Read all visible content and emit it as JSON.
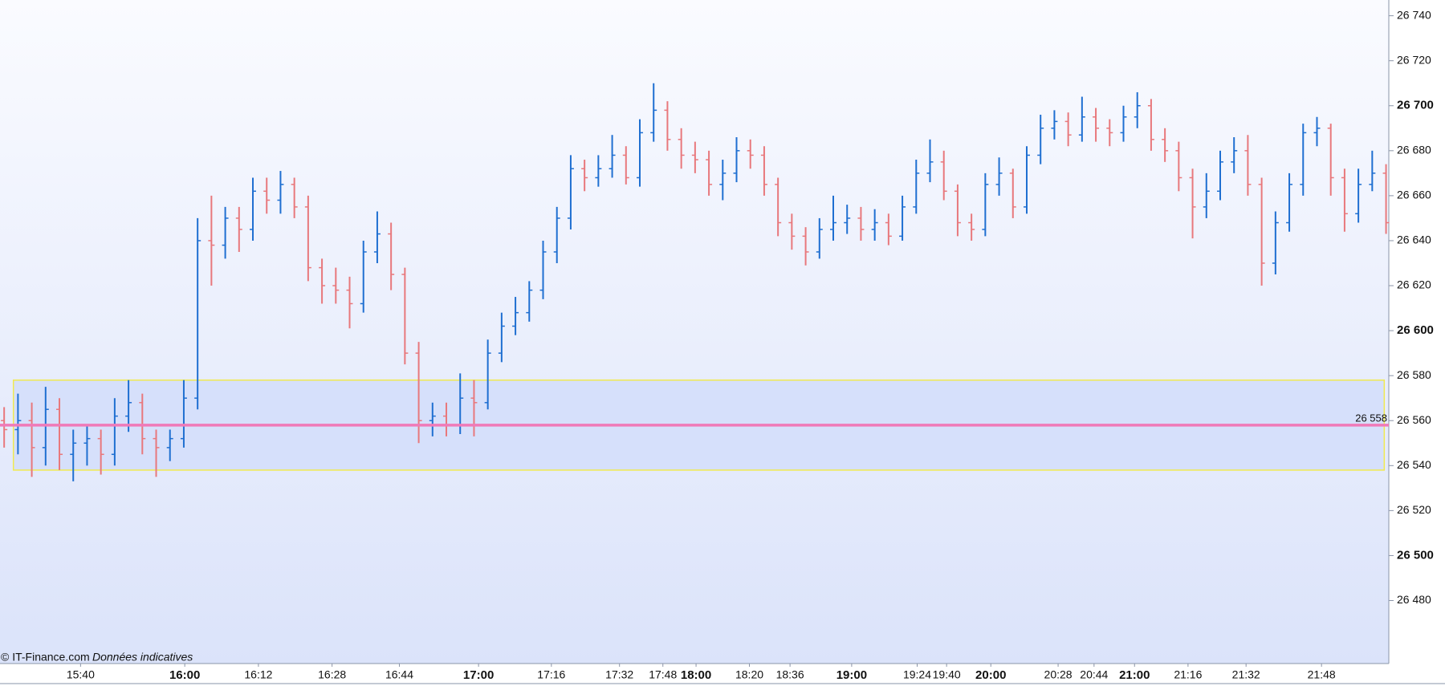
{
  "chart_data": {
    "type": "ohlc",
    "x": [
      0,
      1,
      2,
      3,
      4,
      5,
      6,
      7,
      8,
      9,
      10,
      11,
      12,
      13,
      14,
      15,
      16,
      17,
      18,
      19,
      20,
      21,
      22,
      23,
      24,
      25,
      26,
      27,
      28,
      29,
      30,
      31,
      32,
      33,
      34,
      35,
      36,
      37,
      38,
      39,
      40,
      41,
      42,
      43,
      44,
      45,
      46,
      47,
      48,
      49,
      50,
      51,
      52,
      53,
      54,
      55,
      56,
      57,
      58,
      59,
      60,
      61,
      62,
      63,
      64,
      65,
      66,
      67,
      68,
      69,
      70,
      71,
      72,
      73,
      74,
      75,
      76,
      77,
      78,
      79,
      80,
      81,
      82,
      83,
      84,
      85,
      86,
      87,
      88,
      89,
      90,
      91,
      92,
      93,
      94,
      95,
      96,
      97,
      98,
      99,
      100
    ],
    "open": [
      26560,
      26556,
      26560,
      26548,
      26565,
      26545,
      26550,
      26552,
      26545,
      26562,
      26568,
      26552,
      26548,
      26552,
      26570,
      26640,
      26638,
      26650,
      26645,
      26662,
      26658,
      26665,
      26655,
      26628,
      26620,
      26618,
      26612,
      26635,
      26643,
      26625,
      26590,
      26560,
      26562,
      26558,
      26570,
      26568,
      26590,
      26602,
      26608,
      26618,
      26635,
      26650,
      26672,
      26668,
      26672,
      26678,
      26668,
      26688,
      26698,
      26685,
      26678,
      26676,
      26665,
      26670,
      26680,
      26678,
      26665,
      26648,
      26642,
      26635,
      26645,
      26648,
      26650,
      26645,
      26648,
      26642,
      26655,
      26670,
      26675,
      26662,
      26648,
      26645,
      26665,
      26670,
      26655,
      26678,
      26690,
      26693,
      26687,
      26695,
      26690,
      26688,
      26695,
      26700,
      26685,
      26680,
      26668,
      26655,
      26662,
      26675,
      26680,
      26665,
      26630,
      26648,
      26665,
      26688,
      26690,
      26668,
      26652,
      26665,
      26670
    ],
    "high": [
      26566,
      26572,
      26568,
      26575,
      26570,
      26556,
      26558,
      26556,
      26570,
      26578,
      26572,
      26556,
      26556,
      26578,
      26650,
      26660,
      26655,
      26655,
      26668,
      26668,
      26671,
      26668,
      26660,
      26632,
      26628,
      26624,
      26640,
      26653,
      26648,
      26628,
      26595,
      26568,
      26568,
      26581,
      26578,
      26596,
      26608,
      26615,
      26622,
      26640,
      26655,
      26678,
      26676,
      26678,
      26687,
      26682,
      26694,
      26710,
      26702,
      26690,
      26684,
      26680,
      26676,
      26686,
      26685,
      26682,
      26668,
      26652,
      26646,
      26650,
      26660,
      26656,
      26655,
      26654,
      26652,
      26660,
      26676,
      26685,
      26680,
      26665,
      26652,
      26670,
      26677,
      26672,
      26682,
      26696,
      26698,
      26697,
      26704,
      26699,
      26694,
      26700,
      26706,
      26703,
      26690,
      26684,
      26672,
      26670,
      26680,
      26686,
      26687,
      26668,
      26653,
      26670,
      26692,
      26695,
      26692,
      26672,
      26672,
      26680,
      26674
    ],
    "low": [
      26548,
      26545,
      26535,
      26540,
      26538,
      26533,
      26540,
      26536,
      26540,
      26555,
      26545,
      26535,
      26542,
      26548,
      26565,
      26620,
      26632,
      26635,
      26640,
      26652,
      26652,
      26650,
      26622,
      26612,
      26612,
      26601,
      26608,
      26630,
      26618,
      26585,
      26550,
      26553,
      26553,
      26554,
      26553,
      26565,
      26586,
      26598,
      26604,
      26614,
      26630,
      26645,
      26662,
      26664,
      26668,
      26665,
      26664,
      26684,
      26680,
      26672,
      26670,
      26660,
      26658,
      26666,
      26672,
      26660,
      26642,
      26636,
      26629,
      26632,
      26640,
      26643,
      26640,
      26640,
      26638,
      26640,
      26652,
      26666,
      26658,
      26642,
      26640,
      26642,
      26660,
      26650,
      26652,
      26674,
      26685,
      26682,
      26684,
      26684,
      26682,
      26684,
      26690,
      26680,
      26675,
      26662,
      26641,
      26650,
      26658,
      26670,
      26660,
      26620,
      26625,
      26644,
      26660,
      26682,
      26660,
      26644,
      26648,
      26662,
      26643
    ],
    "close": [
      26556,
      26560,
      26548,
      26565,
      26545,
      26550,
      26552,
      26545,
      26562,
      26568,
      26552,
      26548,
      26552,
      26570,
      26640,
      26638,
      26650,
      26645,
      26662,
      26658,
      26665,
      26655,
      26628,
      26620,
      26618,
      26612,
      26635,
      26643,
      26625,
      26590,
      26560,
      26562,
      26558,
      26570,
      26568,
      26590,
      26602,
      26608,
      26618,
      26635,
      26650,
      26672,
      26668,
      26672,
      26678,
      26668,
      26688,
      26698,
      26685,
      26678,
      26676,
      26665,
      26670,
      26680,
      26678,
      26665,
      26648,
      26642,
      26635,
      26645,
      26648,
      26650,
      26645,
      26648,
      26642,
      26655,
      26670,
      26675,
      26662,
      26648,
      26645,
      26665,
      26670,
      26655,
      26678,
      26690,
      26693,
      26687,
      26695,
      26690,
      26688,
      26695,
      26700,
      26685,
      26680,
      26668,
      26655,
      26662,
      26675,
      26680,
      26665,
      26630,
      26648,
      26665,
      26688,
      26690,
      26668,
      26652,
      26665,
      26670,
      26648
    ],
    "up_color": "#1f6fd1",
    "down_color": "#e8787c",
    "xlim": [
      -0.3,
      100.2
    ],
    "ylim": [
      26452,
      26747
    ],
    "xticks": [
      {
        "value": 5.53,
        "label": "15:40"
      },
      {
        "value": 18.4,
        "label": "16:12"
      },
      {
        "value": 23.73,
        "label": "16:28"
      },
      {
        "value": 28.6,
        "label": "16:44"
      },
      {
        "value": 39.6,
        "label": "17:16"
      },
      {
        "value": 44.53,
        "label": "17:32"
      },
      {
        "value": 47.67,
        "label": "17:48"
      },
      {
        "value": 53.93,
        "label": "18:20"
      },
      {
        "value": 56.87,
        "label": "18:36"
      },
      {
        "value": 66.07,
        "label": "19:24"
      },
      {
        "value": 68.2,
        "label": "19:40"
      },
      {
        "value": 76.27,
        "label": "20:28"
      },
      {
        "value": 78.87,
        "label": "20:44"
      },
      {
        "value": 85.67,
        "label": "21:16"
      },
      {
        "value": 89.87,
        "label": "21:32"
      },
      {
        "value": 95.33,
        "label": "21:48"
      }
    ],
    "xticks_major": [
      {
        "value": 13.07,
        "label": "16:00"
      },
      {
        "value": 34.33,
        "label": "17:00"
      },
      {
        "value": 50.07,
        "label": "18:00"
      },
      {
        "value": 61.33,
        "label": "19:00"
      },
      {
        "value": 71.4,
        "label": "20:00"
      },
      {
        "value": 81.8,
        "label": "21:00"
      }
    ],
    "yticks": [
      {
        "value": 26740,
        "label": "26 740"
      },
      {
        "value": 26720,
        "label": "26 720"
      },
      {
        "value": 26680,
        "label": "26 680"
      },
      {
        "value": 26660,
        "label": "26 660"
      },
      {
        "value": 26640,
        "label": "26 640"
      },
      {
        "value": 26620,
        "label": "26 620"
      },
      {
        "value": 26580,
        "label": "26 580"
      },
      {
        "value": 26560,
        "label": "26 560"
      },
      {
        "value": 26540,
        "label": "26 540"
      },
      {
        "value": 26520,
        "label": "26 520"
      },
      {
        "value": 26480,
        "label": "26 480"
      }
    ],
    "yticks_major": [
      {
        "value": 26700,
        "label": "26 700"
      },
      {
        "value": 26600,
        "label": "26 600"
      },
      {
        "value": 26500,
        "label": "26 500"
      }
    ],
    "zone": {
      "from": 26538,
      "to": 26578,
      "x_start": 0.67,
      "x_end": 99.87,
      "fill": "#d6e0fb",
      "border": "#f0ea50"
    },
    "level": {
      "value": 26558,
      "label": "26 558",
      "color": "#f07ab8"
    },
    "source": "© IT-Finance.com",
    "note": "Données indicatives"
  }
}
